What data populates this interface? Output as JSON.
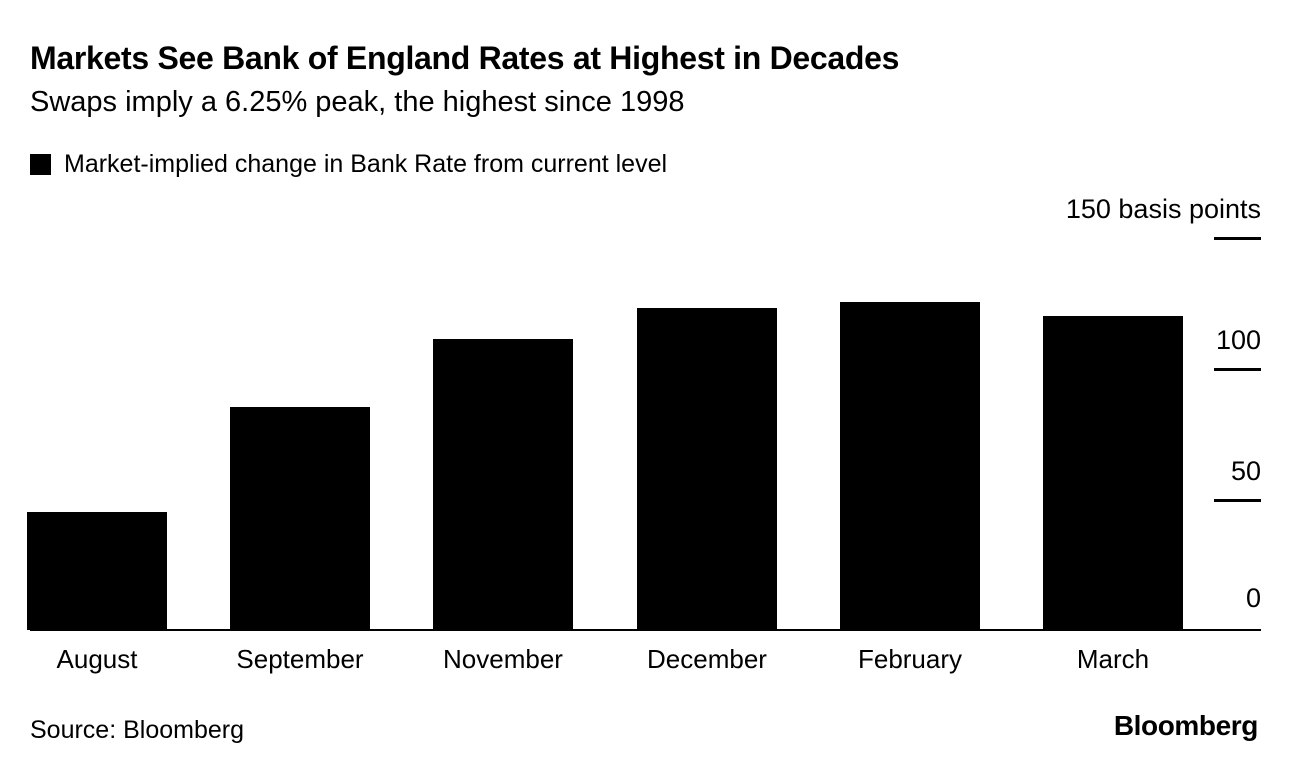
{
  "header": {
    "title": "Markets See Bank of England Rates at Highest in Decades",
    "subtitle": "Swaps imply a 6.25% peak, the highest since 1998"
  },
  "legend": {
    "swatch_icon": "black-square",
    "swatch_color": "#000000",
    "label": "Market-implied change in Bank Rate from current level"
  },
  "axis": {
    "unit_label": "150 basis points",
    "yticks": [
      {
        "value": 150,
        "label": "150 basis points",
        "tick": true
      },
      {
        "value": 100,
        "label": "100",
        "tick": true
      },
      {
        "value": 50,
        "label": "50",
        "tick": true
      },
      {
        "value": 0,
        "label": "0",
        "tick": false
      }
    ]
  },
  "chart_data": {
    "type": "bar",
    "title": "Markets See Bank of England Rates at Highest in Decades",
    "subtitle": "Swaps imply a 6.25% peak, the highest since 1998",
    "series_name": "Market-implied change in Bank Rate from current level",
    "categories": [
      "August",
      "September",
      "November",
      "December",
      "February",
      "March"
    ],
    "values": [
      45,
      85,
      111,
      123,
      125,
      120
    ],
    "unit": "basis points",
    "ylim": [
      0,
      150
    ],
    "yticks": [
      0,
      50,
      100,
      150
    ],
    "bar_color": "#000000",
    "background_color": "#ffffff",
    "grid": false,
    "legend_position": "top-left",
    "axis_labels_position": "right"
  },
  "footer": {
    "source": "Source: Bloomberg",
    "brand": "Bloomberg"
  }
}
